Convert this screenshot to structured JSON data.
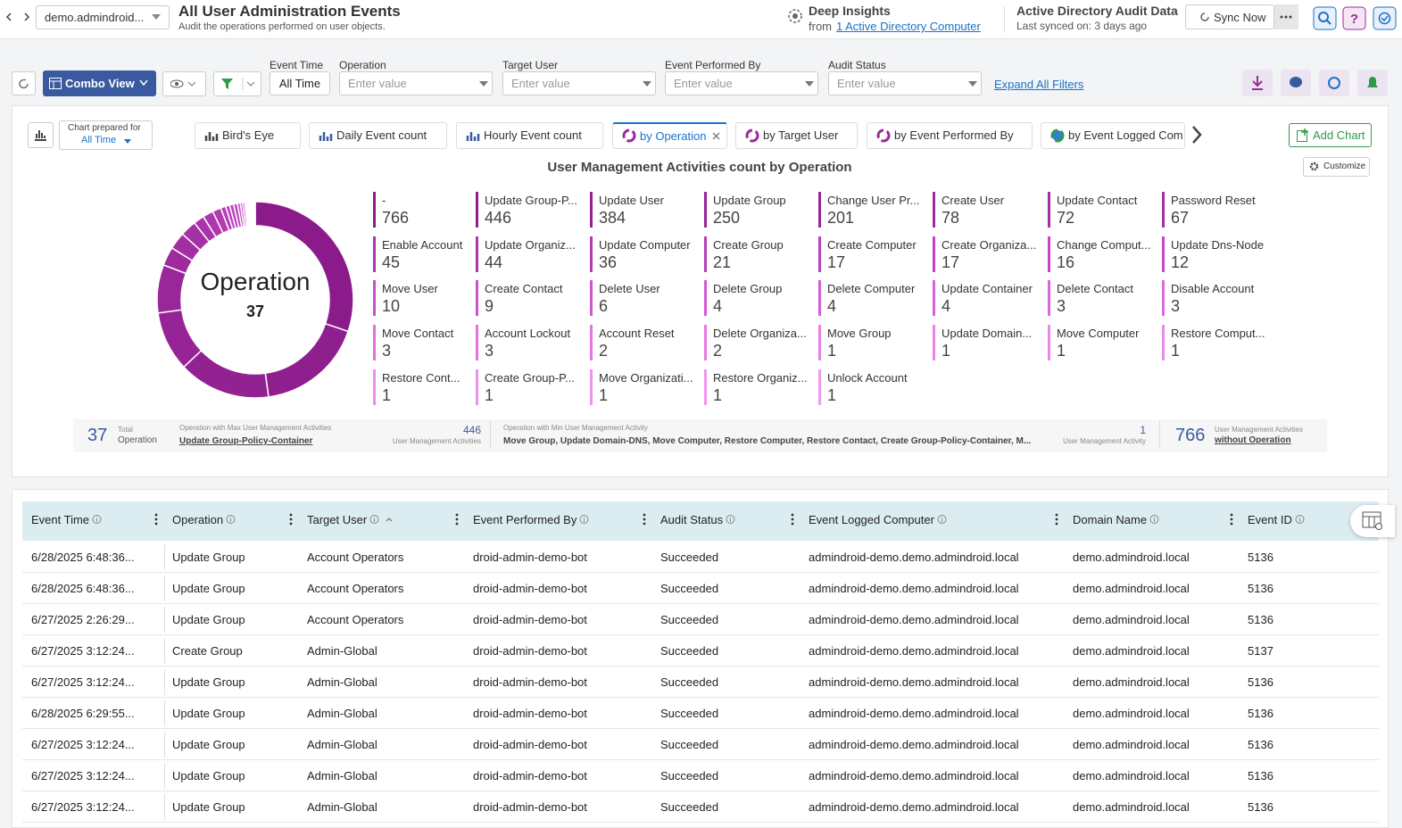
{
  "header": {
    "workspace": "demo.admindroid...",
    "title": "All User Administration Events",
    "subtitle": "Audit the operations performed on user objects.",
    "insights_title": "Deep Insights",
    "insights_from": "from",
    "insights_link": "1 Active Directory Computer",
    "audit_title": "Active Directory Audit Data",
    "last_synced": "Last synced on: 3 days ago",
    "sync_button": "Sync Now"
  },
  "toolbar": {
    "view_button": "Combo View",
    "filters": [
      {
        "label": "Event Time",
        "value": "All Time"
      },
      {
        "label": "Operation",
        "placeholder": "Enter value"
      },
      {
        "label": "Target User",
        "placeholder": "Enter value"
      },
      {
        "label": "Event Performed By",
        "placeholder": "Enter value"
      },
      {
        "label": "Audit Status",
        "placeholder": "Enter value"
      }
    ],
    "expand_link": "Expand All Filters"
  },
  "chart_panel": {
    "prepared_for_label": "Chart prepared for",
    "prepared_for_value": "All Time",
    "tabs": [
      "Bird's Eye",
      "Daily Event count",
      "Hourly Event count",
      "by Operation",
      "by Target User",
      "by Event Performed By",
      "by Event Logged Com"
    ],
    "add_chart": "Add Chart",
    "customize": "Customize"
  },
  "chart_data": {
    "type": "pie",
    "title": "User Management Activities count by Operation",
    "center_label": "Operation",
    "center_value": 37,
    "categories": [
      "-",
      "Update Group-P...",
      "Update User",
      "Update Group",
      "Change User Pr...",
      "Create User",
      "Update Contact",
      "Password Reset",
      "Enable Account",
      "Update Organiz...",
      "Update Computer",
      "Create Group",
      "Create Computer",
      "Create Organiza...",
      "Change Comput...",
      "Update Dns-Node",
      "Move User",
      "Create Contact",
      "Delete User",
      "Delete Group",
      "Delete Computer",
      "Update Container",
      "Delete Contact",
      "Disable Account",
      "Move Contact",
      "Account Lockout",
      "Account Reset",
      "Delete Organiza...",
      "Move Group",
      "Update Domain...",
      "Move Computer",
      "Restore Comput...",
      "Restore Cont...",
      "Create Group-P...",
      "Move Organizati...",
      "Restore Organiz...",
      "Unlock Account"
    ],
    "values": [
      766,
      446,
      384,
      250,
      201,
      78,
      72,
      67,
      45,
      44,
      36,
      21,
      17,
      17,
      16,
      12,
      10,
      9,
      6,
      4,
      4,
      4,
      3,
      3,
      3,
      3,
      2,
      2,
      1,
      1,
      1,
      1,
      1,
      1,
      1,
      1,
      1
    ],
    "colors": [
      "#8b1b8b",
      "#8f1e8f",
      "#922192",
      "#962496",
      "#9a279a",
      "#9e2a9e",
      "#a22ea2",
      "#a631a6",
      "#aa34aa",
      "#ae37ae",
      "#b23ab2",
      "#b63eb6",
      "#ba41ba",
      "#be44be",
      "#c247c2",
      "#c64ac6",
      "#c94ec9",
      "#cc52cc",
      "#cf56cf",
      "#d25ad2",
      "#d55ed5",
      "#d862d8",
      "#db66db",
      "#de6ade",
      "#e06ee0",
      "#e272e2",
      "#e476e4",
      "#e67ae6",
      "#e87ee8",
      "#ea82ea",
      "#eb86eb",
      "#ec89ec",
      "#ed8ced",
      "#ee90ee",
      "#ef93ef",
      "#f096f0",
      "#f199f1"
    ]
  },
  "summary": {
    "total_value": 37,
    "total_label": "Total",
    "total_sub": "Operation",
    "max_label": "Operation with Max User Management Activities",
    "max_name": "Update Group-Policy-Container",
    "max_value": 446,
    "max_unit": "User Management Activities",
    "min_label": "Operation with Min User Management Activity",
    "min_names": "Move Group, Update Domain-DNS, Move Computer, Restore Computer, Restore Contact, Create Group-Policy-Container, M...",
    "min_value": 1,
    "min_unit": "User Management Activity",
    "without_value": 766,
    "without_unit": "User Management Activities",
    "without_link": "without Operation"
  },
  "table": {
    "columns": [
      "Event Time",
      "Operation",
      "Target User",
      "Event Performed By",
      "Audit Status",
      "Event Logged Computer",
      "Domain Name",
      "Event ID"
    ],
    "rows": [
      [
        "6/28/2025 6:48:36...",
        "Update Group",
        "Account Operators",
        "droid-admin-demo-bot",
        "Succeeded",
        "admindroid-demo.demo.admindroid.local",
        "demo.admindroid.local",
        "5136"
      ],
      [
        "6/28/2025 6:48:36...",
        "Update Group",
        "Account Operators",
        "droid-admin-demo-bot",
        "Succeeded",
        "admindroid-demo.demo.admindroid.local",
        "demo.admindroid.local",
        "5136"
      ],
      [
        "6/27/2025 2:26:29...",
        "Update Group",
        "Account Operators",
        "droid-admin-demo-bot",
        "Succeeded",
        "admindroid-demo.demo.admindroid.local",
        "demo.admindroid.local",
        "5136"
      ],
      [
        "6/27/2025 3:12:24...",
        "Create Group",
        "Admin-Global",
        "droid-admin-demo-bot",
        "Succeeded",
        "admindroid-demo.demo.admindroid.local",
        "demo.admindroid.local",
        "5137"
      ],
      [
        "6/27/2025 3:12:24...",
        "Update Group",
        "Admin-Global",
        "droid-admin-demo-bot",
        "Succeeded",
        "admindroid-demo.demo.admindroid.local",
        "demo.admindroid.local",
        "5136"
      ],
      [
        "6/28/2025 6:29:55...",
        "Update Group",
        "Admin-Global",
        "droid-admin-demo-bot",
        "Succeeded",
        "admindroid-demo.demo.admindroid.local",
        "demo.admindroid.local",
        "5136"
      ],
      [
        "6/27/2025 3:12:24...",
        "Update Group",
        "Admin-Global",
        "droid-admin-demo-bot",
        "Succeeded",
        "admindroid-demo.demo.admindroid.local",
        "demo.admindroid.local",
        "5136"
      ],
      [
        "6/27/2025 3:12:24...",
        "Update Group",
        "Admin-Global",
        "droid-admin-demo-bot",
        "Succeeded",
        "admindroid-demo.demo.admindroid.local",
        "demo.admindroid.local",
        "5136"
      ],
      [
        "6/27/2025 3:12:24...",
        "Update Group",
        "Admin-Global",
        "droid-admin-demo-bot",
        "Succeeded",
        "admindroid-demo.demo.admindroid.local",
        "demo.admindroid.local",
        "5136"
      ]
    ]
  }
}
